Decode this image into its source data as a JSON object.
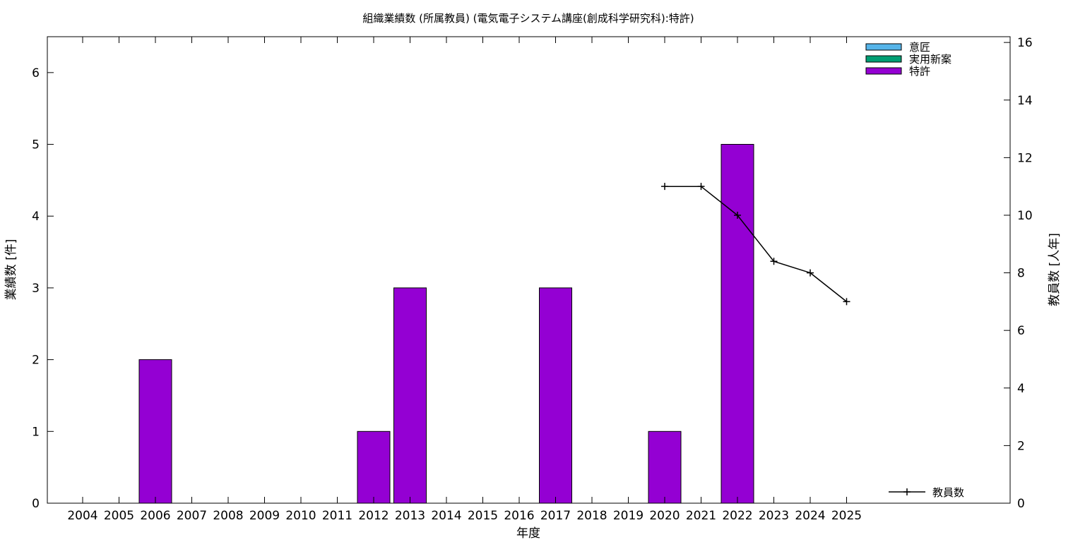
{
  "chart_data": {
    "type": "bar",
    "title": "組織業績数 (所属教員) (電気電子システム講座(創成科学研究科):特許)",
    "xlabel": "年度",
    "ylabel": "業績数 [件]",
    "y2label": "教員数 [人年]",
    "categories": [
      "2004",
      "2005",
      "2006",
      "2007",
      "2008",
      "2009",
      "2010",
      "2011",
      "2012",
      "2013",
      "2014",
      "2015",
      "2016",
      "2017",
      "2018",
      "2019",
      "2020",
      "2021",
      "2022",
      "2023",
      "2024",
      "2025"
    ],
    "ylim": [
      0,
      6.5
    ],
    "y_ticks": [
      "0",
      "1",
      "2",
      "3",
      "4",
      "5",
      "6"
    ],
    "y2lim": [
      0,
      16.2
    ],
    "y2_ticks": [
      "0",
      "2",
      "4",
      "6",
      "8",
      "10",
      "12",
      "14",
      "16"
    ],
    "grid": false,
    "legend_position": "top-right",
    "series": [
      {
        "name": "意匠",
        "color": "#56b4e9",
        "values": [
          0,
          0,
          0,
          0,
          0,
          0,
          0,
          0,
          0,
          0,
          0,
          0,
          0,
          0,
          0,
          0,
          0,
          0,
          0,
          0,
          0,
          0
        ]
      },
      {
        "name": "実用新案",
        "color": "#009e73",
        "values": [
          0,
          0,
          0,
          0,
          0,
          0,
          0,
          0,
          0,
          0,
          0,
          0,
          0,
          0,
          0,
          0,
          0,
          0,
          0,
          0,
          0,
          0
        ]
      },
      {
        "name": "特許",
        "color": "#9400d3",
        "values": [
          0,
          0,
          2,
          0,
          0,
          0,
          0,
          0,
          1,
          3,
          0,
          0,
          0,
          3,
          0,
          0,
          1,
          0,
          5,
          0,
          0,
          0
        ]
      }
    ],
    "line_series": {
      "name": "教員数",
      "color": "#000000",
      "axis": "y2",
      "x": [
        "2020",
        "2021",
        "2022",
        "2023",
        "2024",
        "2025"
      ],
      "values": [
        11,
        11,
        10,
        8.4,
        8,
        7
      ]
    }
  }
}
